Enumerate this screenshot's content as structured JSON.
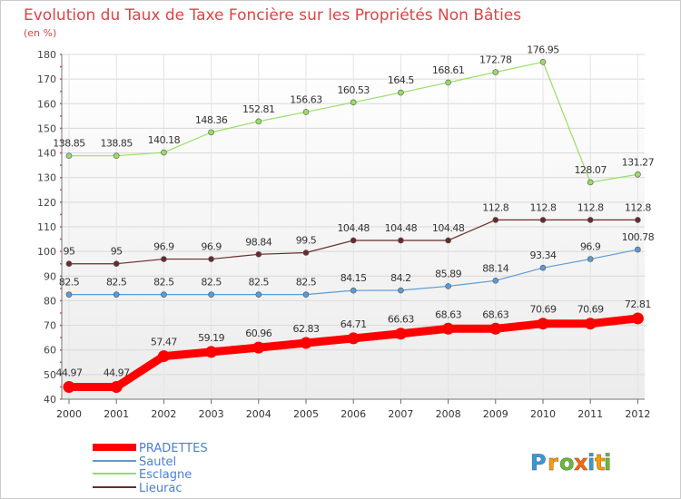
{
  "chart_data": {
    "type": "line",
    "title": "Evolution du Taux de Taxe Foncière sur les Propriétés Non Bâties",
    "subtitle": "(en %)",
    "xlabel": "",
    "ylabel": "",
    "x": [
      "2000",
      "2001",
      "2002",
      "2003",
      "2004",
      "2005",
      "2006",
      "2007",
      "2008",
      "2009",
      "2010",
      "2011",
      "2012"
    ],
    "ylim": [
      40,
      180
    ],
    "yticks": [
      40,
      50,
      60,
      70,
      80,
      90,
      100,
      110,
      120,
      130,
      140,
      150,
      160,
      170,
      180
    ],
    "grid": true,
    "legend_position": "bottom-left",
    "series": [
      {
        "name": "PRADETTES",
        "color": "#ff0000",
        "values": [
          44.97,
          44.97,
          57.47,
          59.19,
          60.96,
          62.83,
          64.71,
          66.63,
          68.63,
          68.63,
          70.69,
          70.69,
          72.81
        ],
        "labels": [
          "44.97",
          "44.97",
          "57.47",
          "59.19",
          "60.96",
          "62.83",
          "64.71",
          "66.63",
          "68.63",
          "68.63",
          "70.69",
          "70.69",
          "72.81"
        ]
      },
      {
        "name": "Sautel",
        "color": "#5b9bd5",
        "values": [
          82.5,
          82.5,
          82.5,
          82.5,
          82.5,
          82.5,
          84.15,
          84.2,
          85.89,
          88.14,
          93.34,
          96.9,
          100.78
        ],
        "labels": [
          "82.5",
          "82.5",
          "82.5",
          "82.5",
          "82.5",
          "82.5",
          "84.15",
          "84.2",
          "85.89",
          "88.14",
          "93.34",
          "96.9",
          "100.78"
        ]
      },
      {
        "name": "Esclagne",
        "color": "#99dd66",
        "values": [
          138.85,
          138.85,
          140.18,
          148.36,
          152.81,
          156.63,
          160.53,
          164.5,
          168.61,
          172.78,
          176.95,
          128.07,
          131.27
        ],
        "labels": [
          "138.85",
          "138.85",
          "140.18",
          "148.36",
          "152.81",
          "156.63",
          "160.53",
          "164.5",
          "168.61",
          "172.78",
          "176.95",
          "128.07",
          "131.27"
        ]
      },
      {
        "name": "Lieurac",
        "color": "#6b2a2a",
        "values": [
          95,
          95,
          96.9,
          96.9,
          98.84,
          99.5,
          104.48,
          104.48,
          104.48,
          112.8,
          112.8,
          112.8,
          112.8
        ],
        "labels": [
          "95",
          "95",
          "96.9",
          "96.9",
          "98.84",
          "99.5",
          "104.48",
          "104.48",
          "104.48",
          "112.8",
          "112.8",
          "112.8",
          "112.8"
        ]
      }
    ]
  },
  "brand": {
    "letters": [
      "P",
      "r",
      "o",
      "x",
      "i",
      "t",
      "i"
    ],
    "colors": [
      "#3399dd",
      "#ff9900",
      "#66bb33",
      "#ff6600",
      "#3399dd",
      "#ff9900",
      "#66bb33"
    ]
  }
}
